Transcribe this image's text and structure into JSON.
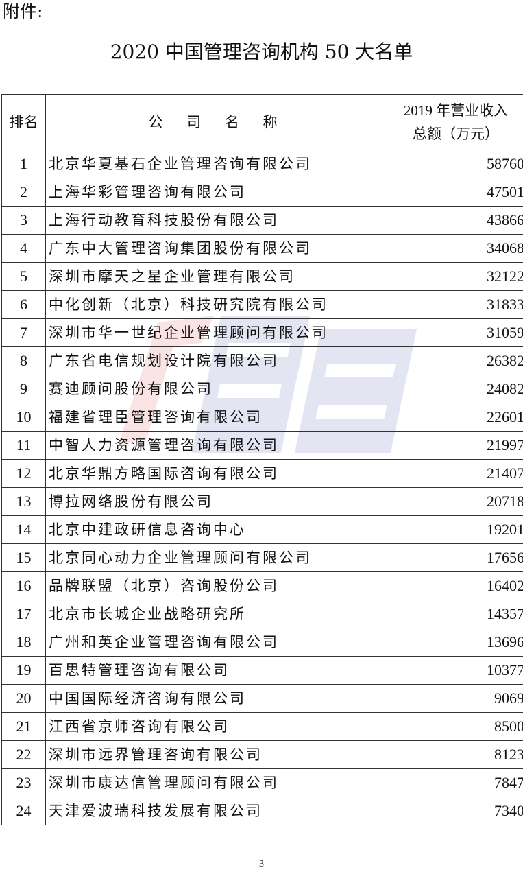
{
  "header": {
    "attachment_label": "附件:",
    "title": "2020 中国管理咨询机构 50 大名单"
  },
  "table": {
    "columns": {
      "rank": "排名",
      "company": "公 司 名 称",
      "revenue_line1": "2019 年营业收入",
      "revenue_line2": "总额（万元）"
    },
    "rows": [
      {
        "rank": "1",
        "company": "北京华夏基石企业管理咨询有限公司",
        "revenue": "58760"
      },
      {
        "rank": "2",
        "company": "上海华彩管理咨询有限公司",
        "revenue": "47501"
      },
      {
        "rank": "3",
        "company": "上海行动教育科技股份有限公司",
        "revenue": "43866"
      },
      {
        "rank": "4",
        "company": "广东中大管理咨询集团股份有限公司",
        "revenue": "34068"
      },
      {
        "rank": "5",
        "company": "深圳市摩天之星企业管理有限公司",
        "revenue": "32122"
      },
      {
        "rank": "6",
        "company": "中化创新（北京）科技研究院有限公司",
        "revenue": "31833"
      },
      {
        "rank": "7",
        "company": "深圳市华一世纪企业管理顾问有限公司",
        "revenue": "31059"
      },
      {
        "rank": "8",
        "company": "广东省电信规划设计院有限公司",
        "revenue": "26382"
      },
      {
        "rank": "9",
        "company": "赛迪顾问股份有限公司",
        "revenue": "24082"
      },
      {
        "rank": "10",
        "company": "福建省理臣管理咨询有限公司",
        "revenue": "22601"
      },
      {
        "rank": "11",
        "company": "中智人力资源管理咨询有限公司",
        "revenue": "21997"
      },
      {
        "rank": "12",
        "company": "北京华鼎方略国际咨询有限公司",
        "revenue": "21407"
      },
      {
        "rank": "13",
        "company": "博拉网络股份有限公司",
        "revenue": "20718"
      },
      {
        "rank": "14",
        "company": "北京中建政研信息咨询中心",
        "revenue": "19201"
      },
      {
        "rank": "15",
        "company": "北京同心动力企业管理顾问有限公司",
        "revenue": "17656"
      },
      {
        "rank": "16",
        "company": "品牌联盟（北京）咨询股份公司",
        "revenue": "16402"
      },
      {
        "rank": "17",
        "company": "北京市长城企业战略研究所",
        "revenue": "14357"
      },
      {
        "rank": "18",
        "company": "广州和英企业管理咨询有限公司",
        "revenue": "13696"
      },
      {
        "rank": "19",
        "company": "百思特管理咨询有限公司",
        "revenue": "10377"
      },
      {
        "rank": "20",
        "company": "中国国际经济咨询有限公司",
        "revenue": "9069"
      },
      {
        "rank": "21",
        "company": "江西省京师咨询有限公司",
        "revenue": "8500"
      },
      {
        "rank": "22",
        "company": "深圳市远界管理咨询有限公司",
        "revenue": "8123"
      },
      {
        "rank": "23",
        "company": "深圳市康达信管理顾问有限公司",
        "revenue": "7847"
      },
      {
        "rank": "24",
        "company": "天津爱波瑞科技发展有限公司",
        "revenue": "7340"
      }
    ]
  },
  "footer": {
    "page_number": "3"
  },
  "colors": {
    "watermark_red": "#e03030",
    "watermark_blue": "#3040a0",
    "border": "#333333"
  }
}
